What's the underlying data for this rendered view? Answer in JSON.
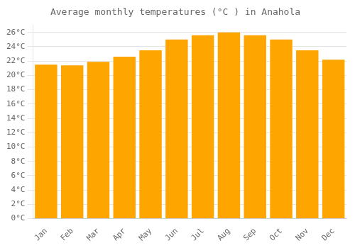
{
  "chart_data": {
    "type": "bar",
    "title": "Average monthly temperatures (°C ) in Anahola",
    "categories": [
      "Jan",
      "Feb",
      "Mar",
      "Apr",
      "May",
      "Jun",
      "Jul",
      "Aug",
      "Sep",
      "Oct",
      "Nov",
      "Dec"
    ],
    "values": [
      21.5,
      21.4,
      21.9,
      22.6,
      23.5,
      25.0,
      25.6,
      26.0,
      25.6,
      25.0,
      23.5,
      22.2
    ],
    "color": "#FFA500",
    "ylim": [
      0,
      27
    ],
    "yticks": [
      {
        "value": 0,
        "label": "0°C"
      },
      {
        "value": 2,
        "label": "2°C"
      },
      {
        "value": 4,
        "label": "4°C"
      },
      {
        "value": 6,
        "label": "6°C"
      },
      {
        "value": 8,
        "label": "8°C"
      },
      {
        "value": 10,
        "label": "10°C"
      },
      {
        "value": 12,
        "label": "12°C"
      },
      {
        "value": 14,
        "label": "14°C"
      },
      {
        "value": 16,
        "label": "16°C"
      },
      {
        "value": 18,
        "label": "18°C"
      },
      {
        "value": 20,
        "label": "20°C"
      },
      {
        "value": 22,
        "label": "22°C"
      },
      {
        "value": 24,
        "label": "24°C"
      },
      {
        "value": 26,
        "label": "26°C"
      }
    ],
    "grid": true
  }
}
